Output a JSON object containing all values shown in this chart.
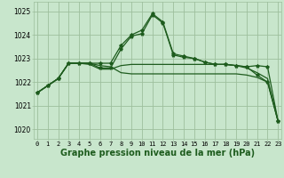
{
  "bg_color": "#c8e6cc",
  "grid_color": "#9dbf9d",
  "line_color": "#1e5c1e",
  "xlabel": "Graphe pression niveau de la mer (hPa)",
  "xlabel_fontsize": 7,
  "yticks": [
    1020,
    1021,
    1022,
    1023,
    1024,
    1025
  ],
  "xticks": [
    0,
    1,
    2,
    3,
    4,
    5,
    6,
    7,
    8,
    9,
    10,
    11,
    12,
    13,
    14,
    15,
    16,
    17,
    18,
    19,
    20,
    21,
    22,
    23
  ],
  "ylim": [
    1019.6,
    1025.4
  ],
  "xlim": [
    -0.3,
    23.3
  ],
  "series": [
    {
      "y": [
        1021.55,
        1021.85,
        1022.15,
        1022.8,
        1022.8,
        1022.8,
        1022.7,
        1022.65,
        1022.4,
        1022.35,
        1022.35,
        1022.35,
        1022.35,
        1022.35,
        1022.35,
        1022.35,
        1022.35,
        1022.35,
        1022.35,
        1022.35,
        1022.3,
        1022.2,
        1022.0,
        1020.35
      ],
      "marker": false,
      "linewidth": 0.9
    },
    {
      "y": [
        1021.55,
        1021.85,
        1022.15,
        1022.8,
        1022.8,
        1022.75,
        1022.55,
        1022.55,
        1022.7,
        1022.75,
        1022.75,
        1022.75,
        1022.75,
        1022.75,
        1022.75,
        1022.75,
        1022.75,
        1022.75,
        1022.75,
        1022.7,
        1022.6,
        1022.4,
        1022.15,
        1020.35
      ],
      "marker": false,
      "linewidth": 0.9
    },
    {
      "y": [
        1021.55,
        1021.85,
        1022.15,
        1022.8,
        1022.8,
        1022.8,
        1022.6,
        1022.6,
        1023.4,
        1023.95,
        1024.05,
        1024.85,
        1024.5,
        1023.15,
        1023.05,
        1023.0,
        1022.85,
        1022.75,
        1022.75,
        1022.7,
        1022.65,
        1022.7,
        1022.65,
        1020.35
      ],
      "marker": true,
      "linewidth": 0.9
    },
    {
      "y": [
        1021.55,
        1021.85,
        1022.15,
        1022.8,
        1022.8,
        1022.8,
        1022.8,
        1022.8,
        1023.55,
        1024.0,
        1024.2,
        1024.9,
        1024.55,
        1023.2,
        1023.1,
        1023.0,
        1022.85,
        1022.75,
        1022.75,
        1022.7,
        1022.65,
        1022.3,
        1022.0,
        1020.35
      ],
      "marker": true,
      "linewidth": 0.9
    }
  ]
}
